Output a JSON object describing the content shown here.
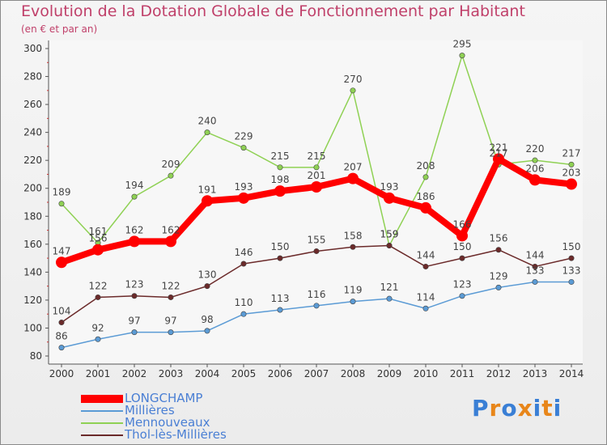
{
  "header": {
    "title": "Evolution de la Dotation Globale de Fonctionnement par Habitant",
    "subtitle": "(en € et par an)"
  },
  "logo": {
    "text": "Proxiti",
    "letters": [
      "P",
      "r",
      "o",
      "x",
      "i",
      "t",
      "i"
    ],
    "colors": [
      "#3a7fd5",
      "#e8861a",
      "#3a7fd5",
      "#e8861a",
      "#3a7fd5",
      "#e8861a",
      "#3a7fd5"
    ]
  },
  "chart_data": {
    "type": "line",
    "title": "Evolution de la Dotation Globale de Fonctionnement par Habitant",
    "subtitle": "(en € et par an)",
    "xlabel": "",
    "ylabel": "",
    "x": [
      "2000",
      "2001",
      "2002",
      "2003",
      "2004",
      "2005",
      "2006",
      "2007",
      "2008",
      "2009",
      "2010",
      "2011",
      "2012",
      "2013",
      "2014"
    ],
    "ylim": [
      80,
      300
    ],
    "yticks": [
      80,
      100,
      120,
      140,
      160,
      180,
      200,
      220,
      240,
      260,
      280,
      300
    ],
    "grid": false,
    "legend_position": "bottom-left",
    "series": [
      {
        "name": "LONGCHAMP",
        "color": "#ff0000",
        "emphasis": true,
        "values": [
          147,
          156,
          162,
          162,
          191,
          193,
          198,
          201,
          207,
          193,
          186,
          166,
          221,
          206,
          203
        ]
      },
      {
        "name": "Millières",
        "color": "#5b9bd5",
        "emphasis": false,
        "values": [
          86,
          92,
          97,
          97,
          98,
          110,
          113,
          116,
          119,
          121,
          114,
          123,
          129,
          133,
          133
        ]
      },
      {
        "name": "Mennouveaux",
        "color": "#8fd154",
        "emphasis": false,
        "values": [
          189,
          161,
          194,
          209,
          240,
          229,
          215,
          215,
          270,
          159,
          208,
          295,
          217,
          220,
          217
        ]
      },
      {
        "name": "Thol-lès-Millières",
        "color": "#6b2a2a",
        "emphasis": false,
        "values": [
          104,
          122,
          123,
          122,
          130,
          146,
          150,
          155,
          158,
          159,
          144,
          150,
          156,
          144,
          150
        ]
      }
    ],
    "label_colors": [
      "#5a5a5a",
      "#5a5a5a",
      "#5a5a5a",
      "#5a5a5a"
    ]
  }
}
